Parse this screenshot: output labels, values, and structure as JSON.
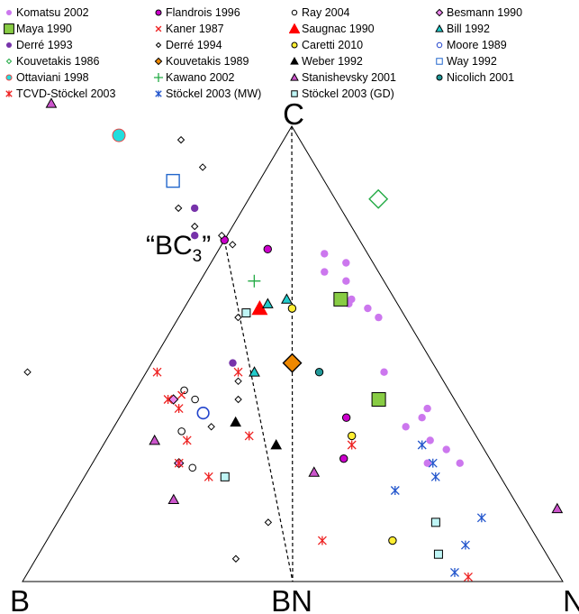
{
  "chart_data": {
    "type": "scatter",
    "subtype": "ternary",
    "vertices": {
      "top": "C",
      "left": "B",
      "right": "N",
      "midpoint_bottom": "BN"
    },
    "annotation": {
      "text": "“BC",
      "subscript": "3",
      "close": "”",
      "composition": [
        25,
        75,
        0
      ]
    },
    "composition_order": [
      "B",
      "C",
      "N"
    ],
    "guide_lines": [
      {
        "from": "BC3",
        "to": "BN",
        "style": "dashed"
      },
      {
        "from": "C",
        "to": "BN",
        "style": "dashed"
      }
    ],
    "series": [
      {
        "name": "Komatsu 2002",
        "marker": "circle-filled",
        "color": "#cc77ee",
        "edge": "#cc77ee",
        "points": [
          [
            8,
            72,
            20
          ],
          [
            5,
            70,
            25
          ],
          [
            10,
            68,
            22
          ],
          [
            7,
            66,
            27
          ],
          [
            8,
            62,
            30
          ],
          [
            6,
            60,
            34
          ],
          [
            9,
            61,
            30
          ],
          [
            5,
            58,
            37
          ],
          [
            10,
            46,
            44
          ],
          [
            6,
            38,
            56
          ],
          [
            8,
            36,
            56
          ],
          [
            12,
            34,
            54
          ],
          [
            9,
            31,
            60
          ],
          [
            7,
            29,
            64
          ],
          [
            6,
            26,
            68
          ],
          [
            12,
            26,
            62
          ]
        ]
      },
      {
        "name": "Flandrois 1996",
        "marker": "circle-filled",
        "color": "#cc00cc",
        "edge": "#000000",
        "points": [
          [
            25,
            75,
            0
          ],
          [
            18,
            73,
            9
          ],
          [
            22,
            36,
            42
          ],
          [
            27,
            27,
            46
          ]
        ]
      },
      {
        "name": "Ray 2004",
        "marker": "circle-open",
        "color": "#000000",
        "edge": "#000000",
        "points": [
          [
            49,
            42,
            9
          ],
          [
            48,
            40,
            12
          ],
          [
            54,
            33,
            13
          ],
          [
            56,
            25,
            19
          ]
        ]
      },
      {
        "name": "Besmann 1990",
        "marker": "diamond-filled",
        "color": "#ee88ee",
        "edge": "#000000",
        "points": [
          [
            52,
            40,
            8
          ],
          [
            58,
            26,
            16
          ]
        ]
      },
      {
        "name": "Maya 1990",
        "marker": "square-filled",
        "color": "#88cc44",
        "edge": "#000000",
        "points": [
          [
            10,
            62,
            28
          ],
          [
            14,
            40,
            46
          ]
        ]
      },
      {
        "name": "Kaner 1987",
        "marker": "x",
        "color": "#ee2222",
        "edge": "#ee2222",
        "points": [
          [
            50,
            41,
            9
          ]
        ]
      },
      {
        "name": "Saugnac 1990",
        "marker": "triangle-filled",
        "color": "#ff0000",
        "edge": "#ff0000",
        "points": [
          [
            26,
            60,
            14
          ]
        ]
      },
      {
        "name": "Bill 1992",
        "marker": "triangle-filled",
        "color": "#22cccc",
        "edge": "#000000",
        "points": [
          [
            20,
            62,
            18
          ],
          [
            24,
            61,
            15
          ],
          [
            34,
            46,
            20
          ]
        ]
      },
      {
        "name": "Derré 1993",
        "marker": "circle-filled",
        "color": "#7733aa",
        "edge": "#7733aa",
        "points": [
          [
            27,
            82,
            -9
          ],
          [
            30,
            76,
            -6
          ],
          [
            37,
            48,
            15
          ]
        ]
      },
      {
        "name": "Derré 1994",
        "marker": "diamond-open",
        "color": "#000000",
        "edge": "#000000",
        "points": [
          [
            22,
            97,
            -19
          ],
          [
            21,
            91,
            -12
          ],
          [
            30,
            82,
            -12
          ],
          [
            29,
            78,
            -7
          ],
          [
            25,
            76,
            -1
          ],
          [
            24,
            74,
            2
          ],
          [
            31,
            58,
            11
          ],
          [
            76,
            46,
            -22
          ],
          [
            38,
            44,
            18
          ],
          [
            40,
            40,
            20
          ],
          [
            48,
            13,
            39
          ],
          [
            58,
            5,
            37
          ],
          [
            48,
            34,
            18
          ]
        ]
      },
      {
        "name": "Moore 1989",
        "marker": "circle-open-large",
        "color": "#2244cc",
        "edge": "#2244cc",
        "points": [
          [
            48,
            37,
            15
          ]
        ]
      },
      {
        "name": "Kouvetakis 1986",
        "marker": "diamond-open-large",
        "color": "#22aa44",
        "edge": "#22aa44",
        "points": [
          [
            -8,
            84,
            24
          ]
        ]
      },
      {
        "name": "Kouvetakis 1989",
        "marker": "diamond-filled-large",
        "color": "#ee8800",
        "edge": "#000000",
        "points": [
          [
            26,
            48,
            26
          ]
        ]
      },
      {
        "name": "Weber 1992",
        "marker": "triangle-filled",
        "color": "#000000",
        "edge": "#000000",
        "points": [
          [
            43,
            35,
            22
          ],
          [
            38,
            30,
            32
          ]
        ]
      },
      {
        "name": "Way 1992",
        "marker": "square-open-large",
        "color": "#2266cc",
        "edge": "#2266cc",
        "points": [
          [
            28,
            88,
            -16
          ]
        ]
      },
      {
        "name": "Ottaviani 1998",
        "marker": "circle-filled-large",
        "color": "#22dddd",
        "edge": "#ee4444",
        "points": [
          [
            33,
            98,
            -31
          ]
        ]
      },
      {
        "name": "Kawano 2002",
        "marker": "plus",
        "color": "#22aa44",
        "edge": "#22aa44",
        "points": [
          [
            24,
            66,
            10
          ]
        ]
      },
      {
        "name": "Stanishevsky 2001",
        "marker": "triangle-open",
        "color": "#cc55cc",
        "edge": "#000000",
        "points": [
          [
            42,
            105,
            -47
          ],
          [
            60,
            31,
            9
          ],
          [
            34,
            24,
            42
          ],
          [
            63,
            18,
            19
          ],
          [
            -7,
            16,
            91
          ]
        ]
      },
      {
        "name": "Nicolich 2001",
        "marker": "circle-filled",
        "color": "#229999",
        "edge": "#000000",
        "points": [
          [
            22,
            46,
            32
          ]
        ]
      },
      {
        "name": "TCVD-Stöckel 2003",
        "marker": "asterisk",
        "color": "#ee2222",
        "edge": "#ee2222",
        "points": [
          [
            53,
            40,
            7
          ],
          [
            52,
            38,
            10
          ],
          [
            52,
            46,
            2
          ],
          [
            37,
            46,
            17
          ],
          [
            54,
            31,
            15
          ],
          [
            58,
            26,
            16
          ],
          [
            42,
            32,
            26
          ],
          [
            54,
            23,
            23
          ],
          [
            24,
            30,
            46
          ],
          [
            40,
            9,
            51
          ],
          [
            17,
            1,
            82
          ]
        ]
      },
      {
        "name": "Stöckel 2003 (MW)",
        "marker": "asterisk",
        "color": "#2255cc",
        "edge": "#2255cc",
        "points": [
          [
            11,
            30,
            59
          ],
          [
            11,
            26,
            63
          ],
          [
            12,
            23,
            65
          ],
          [
            21,
            20,
            59
          ],
          [
            8,
            14,
            78
          ],
          [
            14,
            8,
            78
          ],
          [
            19,
            2,
            79
          ]
        ]
      },
      {
        "name": "Stöckel 2003 (GD)",
        "marker": "square-open",
        "color": "#22aaaa",
        "edge": "#000000",
        "points": [
          [
            29,
            59,
            12
          ],
          [
            51,
            23,
            26
          ],
          [
            17,
            13,
            70
          ],
          [
            20,
            6,
            74
          ]
        ]
      },
      {
        "name": "Caretti 2010",
        "marker": "circle-filled",
        "color": "#ffee33",
        "edge": "#000000",
        "points": [
          [
            20,
            60,
            20
          ],
          [
            23,
            32,
            45
          ],
          [
            27,
            9,
            64
          ]
        ]
      }
    ]
  }
}
